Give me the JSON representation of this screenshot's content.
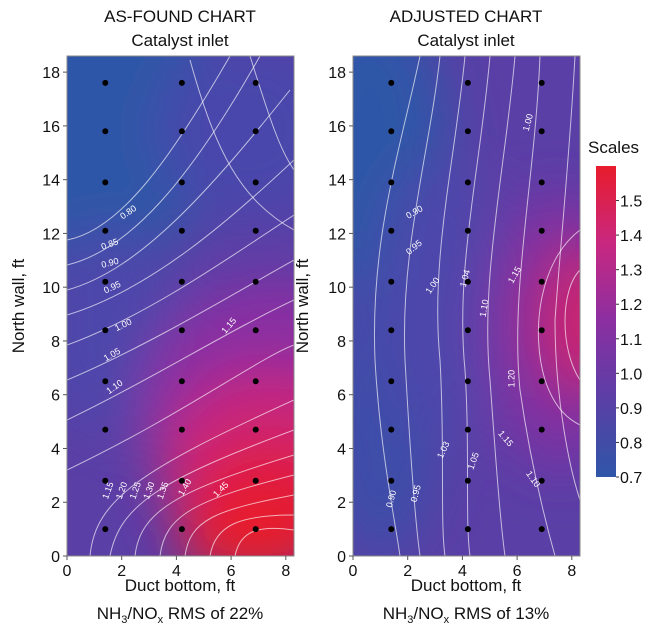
{
  "figure_title": "",
  "colorbar": {
    "title": "Scales",
    "ticks": [
      1.5,
      1.4,
      1.3,
      1.2,
      1.1,
      1.0,
      0.9,
      0.8,
      0.7
    ],
    "tick_labels": [
      "1.5",
      "1.4",
      "1.3",
      "1.2",
      "1.1",
      "1.0",
      "0.9",
      "0.8",
      "0.7"
    ],
    "range": [
      0.7,
      1.6
    ],
    "colors": [
      "#2f56a8",
      "#5a3fa6",
      "#8b2fa2",
      "#c82880",
      "#e81c2c"
    ]
  },
  "chart_data": [
    {
      "type": "heatmap",
      "title": "AS-FOUND CHART",
      "subtitle": "Catalyst inlet",
      "xlabel": "Duct bottom, ft",
      "ylabel": "North wall, ft",
      "caption_main": "NH",
      "caption_sub1": "3",
      "caption_mid": "/NO",
      "caption_sub2": "x",
      "caption_end": " RMS of 22%",
      "xlim": [
        0,
        8.3
      ],
      "ylim": [
        0,
        18.6
      ],
      "xticks": [
        0,
        2,
        4,
        6,
        8
      ],
      "yticks": [
        0,
        2,
        4,
        6,
        8,
        10,
        12,
        14,
        16,
        18
      ],
      "xtick_labels": [
        "0",
        "2",
        "4",
        "6",
        "8"
      ],
      "ytick_labels": [
        "0",
        "2",
        "4",
        "6",
        "8",
        "10",
        "12",
        "14",
        "16",
        "18"
      ],
      "points": [
        [
          1.4,
          1.0
        ],
        [
          4.2,
          1.0
        ],
        [
          6.9,
          1.0
        ],
        [
          1.4,
          2.8
        ],
        [
          4.2,
          2.8
        ],
        [
          6.9,
          2.8
        ],
        [
          1.4,
          4.7
        ],
        [
          4.2,
          4.7
        ],
        [
          6.9,
          4.7
        ],
        [
          1.4,
          6.5
        ],
        [
          4.2,
          6.5
        ],
        [
          6.9,
          6.5
        ],
        [
          1.4,
          8.4
        ],
        [
          4.2,
          8.4
        ],
        [
          6.9,
          8.4
        ],
        [
          1.4,
          10.2
        ],
        [
          4.2,
          10.2
        ],
        [
          6.9,
          10.2
        ],
        [
          1.4,
          12.1
        ],
        [
          4.2,
          12.1
        ],
        [
          6.9,
          12.1
        ],
        [
          1.4,
          13.9
        ],
        [
          4.2,
          13.9
        ],
        [
          6.9,
          13.9
        ],
        [
          1.4,
          15.8
        ],
        [
          4.2,
          15.8
        ],
        [
          6.9,
          15.8
        ],
        [
          1.4,
          17.6
        ],
        [
          4.2,
          17.6
        ],
        [
          6.9,
          17.6
        ]
      ],
      "contour_labels": [
        {
          "text": "0.80",
          "x": 2.3,
          "y": 12.7,
          "angle": -35
        },
        {
          "text": "0.85",
          "x": 1.6,
          "y": 11.5,
          "angle": -20
        },
        {
          "text": "0.90",
          "x": 1.6,
          "y": 10.8,
          "angle": -15
        },
        {
          "text": "0.95",
          "x": 1.7,
          "y": 9.9,
          "angle": -25
        },
        {
          "text": "1.00",
          "x": 2.1,
          "y": 8.5,
          "angle": -25
        },
        {
          "text": "1.05",
          "x": 1.7,
          "y": 7.4,
          "angle": -30
        },
        {
          "text": "1.10",
          "x": 1.8,
          "y": 6.2,
          "angle": -35
        },
        {
          "text": "1.15",
          "x": 6.0,
          "y": 8.5,
          "angle": -50
        },
        {
          "text": "1.15",
          "x": 1.6,
          "y": 2.4,
          "angle": -70
        },
        {
          "text": "1.20",
          "x": 2.1,
          "y": 2.4,
          "angle": -70
        },
        {
          "text": "1.25",
          "x": 2.6,
          "y": 2.4,
          "angle": -70
        },
        {
          "text": "1.30",
          "x": 3.1,
          "y": 2.4,
          "angle": -70
        },
        {
          "text": "1.35",
          "x": 3.6,
          "y": 2.4,
          "angle": -70
        },
        {
          "text": "1.40",
          "x": 4.4,
          "y": 2.5,
          "angle": -60
        },
        {
          "text": "1.45",
          "x": 5.7,
          "y": 2.4,
          "angle": -45
        }
      ]
    },
    {
      "type": "heatmap",
      "title": "ADJUSTED CHART",
      "subtitle": "Catalyst inlet",
      "xlabel": "Duct bottom, ft",
      "ylabel": "North wall, ft",
      "caption_main": "NH",
      "caption_sub1": "3",
      "caption_mid": "/NO",
      "caption_sub2": "x",
      "caption_end": " RMS of 13%",
      "xlim": [
        0,
        8.3
      ],
      "ylim": [
        0,
        18.6
      ],
      "xticks": [
        0,
        2,
        4,
        6,
        8
      ],
      "yticks": [
        0,
        2,
        4,
        6,
        8,
        10,
        12,
        14,
        16,
        18
      ],
      "xtick_labels": [
        "0",
        "2",
        "4",
        "6",
        "8"
      ],
      "ytick_labels": [
        "0",
        "2",
        "4",
        "6",
        "8",
        "10",
        "12",
        "14",
        "16",
        "18"
      ],
      "points": [
        [
          1.4,
          1.0
        ],
        [
          4.2,
          1.0
        ],
        [
          6.9,
          1.0
        ],
        [
          1.4,
          2.8
        ],
        [
          4.2,
          2.8
        ],
        [
          6.9,
          2.8
        ],
        [
          1.4,
          4.7
        ],
        [
          4.2,
          4.7
        ],
        [
          6.9,
          4.7
        ],
        [
          1.4,
          6.5
        ],
        [
          4.2,
          6.5
        ],
        [
          6.9,
          6.5
        ],
        [
          1.4,
          8.4
        ],
        [
          4.2,
          8.4
        ],
        [
          6.9,
          8.4
        ],
        [
          1.4,
          10.2
        ],
        [
          4.2,
          10.2
        ],
        [
          6.9,
          10.2
        ],
        [
          1.4,
          12.1
        ],
        [
          4.2,
          12.1
        ],
        [
          6.9,
          12.1
        ],
        [
          1.4,
          13.9
        ],
        [
          4.2,
          13.9
        ],
        [
          6.9,
          13.9
        ],
        [
          1.4,
          15.8
        ],
        [
          4.2,
          15.8
        ],
        [
          6.9,
          15.8
        ],
        [
          1.4,
          17.6
        ],
        [
          4.2,
          17.6
        ],
        [
          6.9,
          17.6
        ]
      ],
      "contour_labels": [
        {
          "text": "1.00",
          "x": 6.5,
          "y": 16.1,
          "angle": -75
        },
        {
          "text": "0.90",
          "x": 2.3,
          "y": 12.7,
          "angle": -30
        },
        {
          "text": "0.95",
          "x": 2.3,
          "y": 11.4,
          "angle": -40
        },
        {
          "text": "1.00",
          "x": 3.0,
          "y": 10.0,
          "angle": -55
        },
        {
          "text": "1.04",
          "x": 4.2,
          "y": 10.3,
          "angle": -75
        },
        {
          "text": "1.10",
          "x": 4.9,
          "y": 9.2,
          "angle": -80
        },
        {
          "text": "1.15",
          "x": 6.0,
          "y": 10.4,
          "angle": -60
        },
        {
          "text": "1.20",
          "x": 5.9,
          "y": 6.6,
          "angle": -90
        },
        {
          "text": "1.15",
          "x": 5.5,
          "y": 4.3,
          "angle": 50
        },
        {
          "text": "1.10",
          "x": 6.5,
          "y": 2.8,
          "angle": 55
        },
        {
          "text": "1.03",
          "x": 3.4,
          "y": 3.9,
          "angle": -65
        },
        {
          "text": "1.05",
          "x": 4.5,
          "y": 3.5,
          "angle": -70
        },
        {
          "text": "0.90",
          "x": 1.5,
          "y": 2.1,
          "angle": -75
        },
        {
          "text": "0.95",
          "x": 2.4,
          "y": 2.3,
          "angle": -75
        }
      ]
    }
  ]
}
